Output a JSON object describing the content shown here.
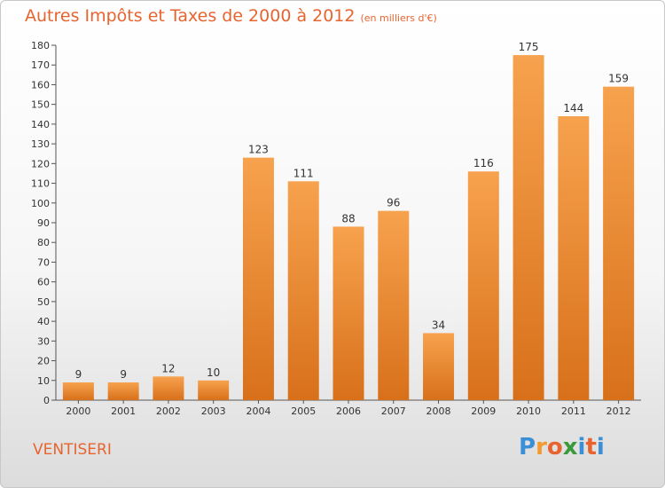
{
  "header": {
    "title": "Autres Impôts et Taxes de 2000 à 2012",
    "unit": "(en milliers d'€)"
  },
  "footer": {
    "commune": "VENTISERI",
    "logo_letters": [
      "P",
      "r",
      "o",
      "x",
      "i",
      "t",
      "i"
    ],
    "logo_colors": [
      "#3b8fd6",
      "#f29a2e",
      "#e8642f",
      "#3a9a3a",
      "#3b8fd6",
      "#e8642f",
      "#3b8fd6"
    ]
  },
  "colors": {
    "bar_top": "#f7a24e",
    "bar_bottom": "#d8701a",
    "accent": "#e8642f"
  },
  "chart_data": {
    "type": "bar",
    "title": "Autres Impôts et Taxes de 2000 à 2012",
    "subtitle": "(en milliers d'€)",
    "categories": [
      "2000",
      "2001",
      "2002",
      "2003",
      "2004",
      "2005",
      "2006",
      "2007",
      "2008",
      "2009",
      "2010",
      "2011",
      "2012"
    ],
    "values": [
      9,
      9,
      12,
      10,
      123,
      111,
      88,
      96,
      34,
      116,
      175,
      144,
      159
    ],
    "ylim": [
      0,
      180
    ],
    "yticks": [
      0,
      10,
      20,
      30,
      40,
      50,
      60,
      70,
      80,
      90,
      100,
      110,
      120,
      130,
      140,
      150,
      160,
      170,
      180
    ],
    "grid": false,
    "legend": "none"
  }
}
